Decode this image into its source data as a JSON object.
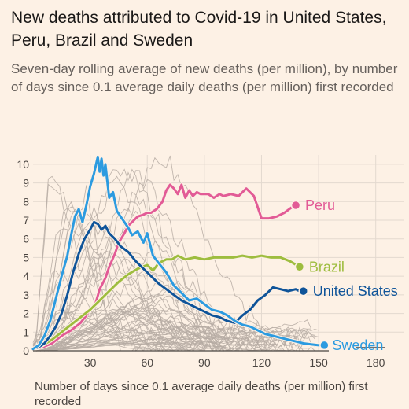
{
  "header": {
    "title": "New deaths attributed to Covid-19 in United States, Peru, Brazil and Sweden",
    "subtitle": "Seven-day rolling average of new deaths (per million), by number of days since 0.1 average daily deaths (per million) first recorded"
  },
  "colors": {
    "background": "#fdf1e5",
    "grid": "#e3d9cf",
    "axis": "#4a4541",
    "other_countries": "#b6aca3",
    "peru": "#e25b96",
    "brazil": "#9ebd3f",
    "united_states": "#0f5499",
    "sweden": "#2c9be0"
  },
  "chart_data": {
    "type": "line",
    "title": "New deaths attributed to Covid-19 in United States, Peru, Brazil and Sweden",
    "subtitle": "Seven-day rolling average of new deaths (per million), by number of days since 0.1 average daily deaths (per million) first recorded",
    "xlabel": "Number of days since 0.1 average daily deaths (per million) first recorded",
    "ylabel": "",
    "xlim": [
      0,
      195
    ],
    "ylim": [
      0,
      10.5
    ],
    "x_ticks": [
      30,
      60,
      90,
      120,
      150,
      180
    ],
    "y_ticks": [
      0,
      1,
      2,
      3,
      4,
      5,
      6,
      7,
      8,
      9,
      10
    ],
    "grid": true,
    "legend": "direct labels at line ends",
    "series": [
      {
        "name": "Peru",
        "color_key": "peru",
        "x": [
          0,
          5,
          10,
          15,
          20,
          25,
          28,
          30,
          33,
          35,
          38,
          40,
          43,
          45,
          48,
          50,
          53,
          55,
          58,
          60,
          62,
          65,
          68,
          70,
          72,
          74,
          76,
          78,
          80,
          82,
          84,
          86,
          88,
          90,
          92,
          95,
          98,
          100,
          104,
          108,
          112,
          116,
          120,
          124,
          128,
          132,
          136,
          138
        ],
        "y": [
          0.1,
          0.2,
          0.4,
          0.8,
          1.1,
          1.5,
          1.9,
          2.2,
          2.6,
          3.3,
          3.9,
          4.5,
          5.2,
          5.8,
          6.3,
          6.7,
          7.0,
          7.2,
          7.3,
          7.4,
          7.4,
          7.6,
          8.0,
          8.6,
          8.9,
          8.7,
          8.4,
          8.9,
          8.2,
          8.6,
          8.3,
          8.5,
          8.4,
          8.4,
          8.4,
          8.2,
          8.4,
          8.3,
          8.4,
          8.3,
          8.7,
          8.3,
          7.1,
          7.1,
          7.2,
          7.4,
          7.7,
          7.8
        ]
      },
      {
        "name": "Brazil",
        "color_key": "brazil",
        "x": [
          0,
          5,
          10,
          15,
          20,
          25,
          30,
          35,
          40,
          45,
          50,
          55,
          60,
          63,
          66,
          70,
          73,
          76,
          80,
          85,
          90,
          95,
          100,
          105,
          110,
          115,
          120,
          125,
          130,
          135,
          140
        ],
        "y": [
          0.1,
          0.3,
          0.6,
          1.0,
          1.4,
          1.8,
          2.2,
          2.7,
          3.2,
          3.7,
          4.1,
          4.4,
          4.6,
          4.3,
          4.7,
          4.9,
          4.9,
          5.1,
          4.9,
          5.0,
          4.9,
          5.0,
          5.0,
          5.0,
          5.1,
          5.0,
          5.1,
          5.0,
          5.0,
          4.8,
          4.5
        ]
      },
      {
        "name": "United States",
        "color_key": "united_states",
        "x": [
          0,
          3,
          6,
          9,
          12,
          15,
          18,
          21,
          24,
          27,
          30,
          32,
          34,
          36,
          38,
          40,
          43,
          46,
          50,
          54,
          58,
          62,
          66,
          70,
          74,
          78,
          82,
          86,
          90,
          94,
          98,
          102,
          106,
          110,
          114,
          118,
          122,
          126,
          130,
          134,
          138,
          140,
          142
        ],
        "y": [
          0.1,
          0.2,
          0.4,
          0.8,
          1.3,
          2.0,
          3.0,
          4.2,
          5.2,
          6.0,
          6.5,
          6.9,
          6.8,
          6.5,
          6.7,
          6.3,
          6.0,
          5.6,
          5.3,
          4.8,
          4.4,
          4.0,
          3.6,
          3.3,
          3.0,
          2.7,
          2.5,
          2.3,
          2.1,
          1.9,
          1.8,
          1.6,
          1.5,
          1.9,
          2.2,
          2.7,
          3.0,
          3.4,
          3.3,
          3.2,
          3.3,
          3.2,
          3.2
        ]
      },
      {
        "name": "Sweden",
        "color_key": "sweden",
        "x": [
          0,
          3,
          6,
          9,
          12,
          15,
          18,
          20,
          22,
          24,
          26,
          28,
          30,
          32,
          34,
          35,
          36,
          37,
          38,
          40,
          42,
          44,
          46,
          48,
          50,
          52,
          55,
          58,
          60,
          63,
          66,
          70,
          74,
          78,
          82,
          86,
          90,
          94,
          98,
          102,
          106,
          110,
          114,
          118,
          122,
          126,
          130,
          134,
          138,
          142,
          146,
          150,
          153
        ],
        "y": [
          0.1,
          0.3,
          0.8,
          1.6,
          2.8,
          4.0,
          5.1,
          6.2,
          7.2,
          7.6,
          6.9,
          7.8,
          8.8,
          9.5,
          10.4,
          9.6,
          10.3,
          9.4,
          10.0,
          8.2,
          8.5,
          7.5,
          7.2,
          6.9,
          6.6,
          6.2,
          6.4,
          5.8,
          6.3,
          5.1,
          4.7,
          4.2,
          3.5,
          3.1,
          2.7,
          2.8,
          2.5,
          2.2,
          2.1,
          1.9,
          1.6,
          1.4,
          1.3,
          1.1,
          0.9,
          0.8,
          0.7,
          0.6,
          0.5,
          0.4,
          0.35,
          0.3,
          0.3
        ]
      }
    ]
  }
}
